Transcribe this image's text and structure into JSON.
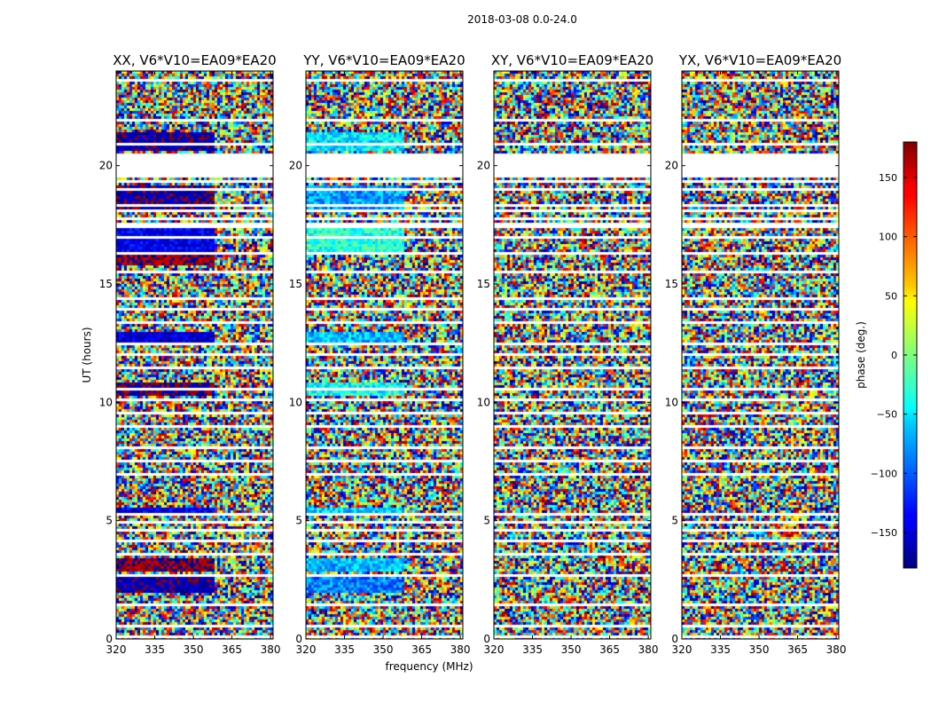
{
  "chart_data": {
    "type": "heatmap",
    "title": "2018-03-08 0.0-24.0",
    "xlabel": "frequency (MHz)",
    "ylabel": "UT (hours)",
    "xlim": [
      320,
      381
    ],
    "ylim": [
      0,
      24
    ],
    "xticks": [
      320,
      335,
      350,
      365,
      380
    ],
    "yticks": [
      0,
      5,
      10,
      15,
      20
    ],
    "colorbar": {
      "label": "phase (deg.)",
      "range": [
        -180,
        180
      ],
      "ticks": [
        150,
        100,
        50,
        0,
        -50,
        -100,
        -150
      ],
      "tick_labels": [
        "150",
        "100",
        "50",
        "0",
        "−50",
        "−100",
        "−150"
      ],
      "colormap": "jet",
      "colors": [
        "#00007f",
        "#0000ff",
        "#00ffff",
        "#7fff7f",
        "#ffff00",
        "#ff0000",
        "#7f0000"
      ]
    },
    "panels": [
      {
        "title": "XX, V6*V10=EA09*EA20",
        "mode": "coherent"
      },
      {
        "title": "YY, V6*V10=EA09*EA20",
        "mode": "coherent"
      },
      {
        "title": "XY, V6*V10=EA09*EA20",
        "mode": "noise"
      },
      {
        "title": "YX, V6*V10=EA09*EA20",
        "mode": "noise"
      }
    ],
    "flagged_ut_hours": [
      [
        0.05,
        0.1
      ],
      [
        0.5,
        0.6
      ],
      [
        1.0,
        1.1
      ],
      [
        1.4,
        1.5
      ],
      [
        1.9,
        2.0
      ],
      [
        2.6,
        2.7
      ],
      [
        2.95,
        3.0
      ],
      [
        3.5,
        3.6
      ],
      [
        4.05,
        4.15
      ],
      [
        4.5,
        4.6
      ],
      [
        4.9,
        5.0
      ],
      [
        5.2,
        5.3
      ],
      [
        6.0,
        6.05
      ],
      [
        6.4,
        6.45
      ],
      [
        6.95,
        7.0
      ],
      [
        7.5,
        7.55
      ],
      [
        8.05,
        8.1
      ],
      [
        8.55,
        8.6
      ],
      [
        8.9,
        9.0
      ],
      [
        9.5,
        9.55
      ],
      [
        10.1,
        10.2
      ],
      [
        10.5,
        10.6
      ],
      [
        11.05,
        11.1
      ],
      [
        11.45,
        11.55
      ],
      [
        12.0,
        12.05
      ],
      [
        12.4,
        12.5
      ],
      [
        12.95,
        13.0
      ],
      [
        13.3,
        13.4
      ],
      [
        13.9,
        14.0
      ],
      [
        14.3,
        14.4
      ],
      [
        14.95,
        15.0
      ],
      [
        15.5,
        15.6
      ],
      [
        16.2,
        16.3
      ],
      [
        16.9,
        17.0
      ],
      [
        17.4,
        17.55
      ],
      [
        17.75,
        17.85
      ],
      [
        18.05,
        18.1
      ],
      [
        18.3,
        18.4
      ],
      [
        18.6,
        18.65
      ],
      [
        18.95,
        19.0
      ],
      [
        19.3,
        19.4
      ],
      [
        19.55,
        20.55
      ],
      [
        20.85,
        20.95
      ],
      [
        21.4,
        21.45
      ],
      [
        21.9,
        22.0
      ],
      [
        22.5,
        22.55
      ],
      [
        22.95,
        23.0
      ],
      [
        23.6,
        23.7
      ]
    ]
  }
}
